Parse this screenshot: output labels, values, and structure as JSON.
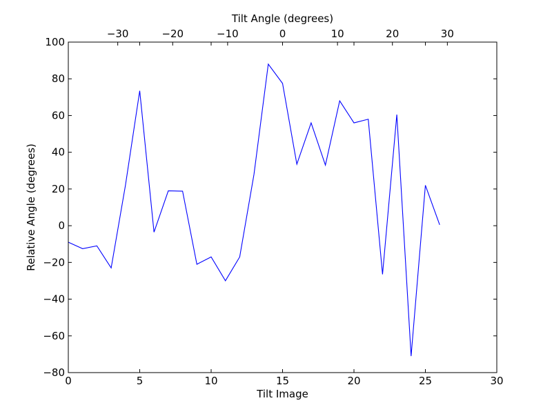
{
  "chart_data": {
    "type": "line",
    "xlabel": "Tilt Image",
    "ylabel": "Relative Angle (degrees)",
    "top_xlabel": "Tilt Angle (degrees)",
    "xlim": [
      0,
      30
    ],
    "ylim": [
      -80,
      100
    ],
    "top_xlim": [
      -39,
      39
    ],
    "grid": false,
    "line_color": "#0000ff",
    "x_ticks": [
      0,
      5,
      10,
      15,
      20,
      25,
      30
    ],
    "y_ticks": [
      -80,
      -60,
      -40,
      -20,
      0,
      20,
      40,
      60,
      80,
      100
    ],
    "top_x_ticks": [
      -30,
      -20,
      -10,
      0,
      10,
      20,
      30
    ],
    "x_tick_labels": [
      "0",
      "5",
      "10",
      "15",
      "20",
      "25",
      "30"
    ],
    "y_tick_labels": [
      "−80",
      "−60",
      "−40",
      "−20",
      "0",
      "20",
      "40",
      "60",
      "80",
      "100"
    ],
    "top_x_tick_labels": [
      "−30",
      "−20",
      "−10",
      "0",
      "10",
      "20",
      "30"
    ],
    "series": [
      {
        "x": [
          0,
          1,
          2,
          3,
          4,
          5,
          6,
          7,
          8,
          9,
          10,
          11,
          12,
          13,
          14,
          15,
          16,
          17,
          18,
          19,
          20,
          21,
          22,
          23,
          24,
          25,
          26
        ],
        "values": [
          -9,
          -12.5,
          -11,
          -23,
          22,
          73.5,
          -3.5,
          19,
          18.8,
          -21,
          -17,
          -30,
          -17,
          28,
          88,
          77.5,
          33.5,
          56,
          33,
          68,
          56,
          58,
          -26.5,
          60.5,
          -71,
          22,
          0.5
        ]
      }
    ]
  }
}
